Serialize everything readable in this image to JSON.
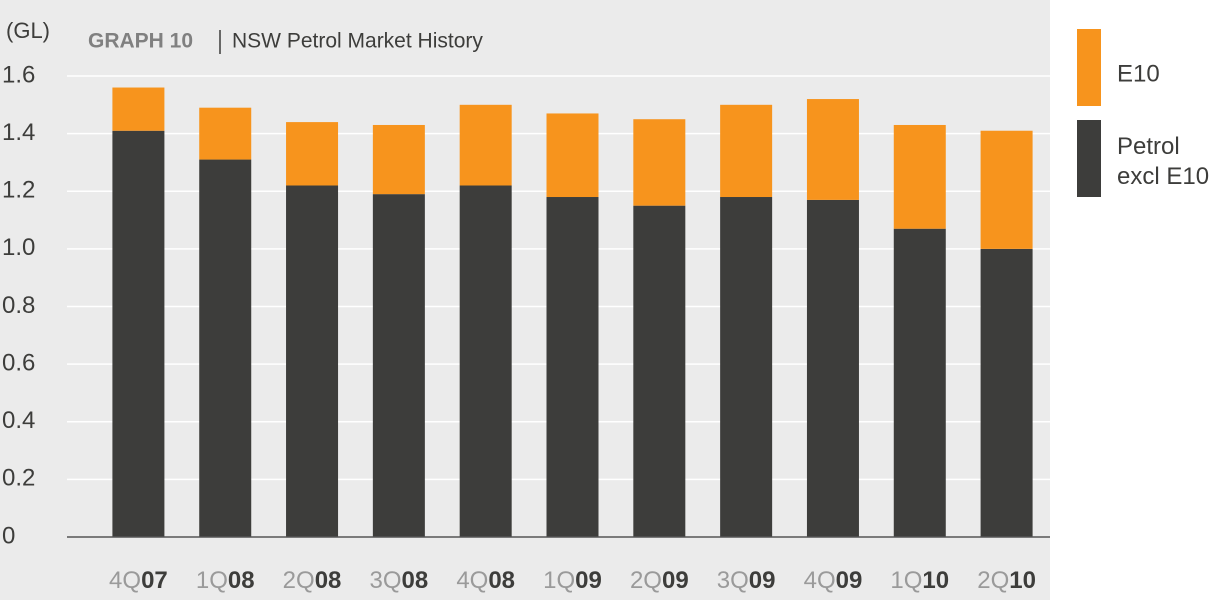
{
  "chart_data": {
    "type": "stacked_bar",
    "title_label": "GRAPH 10",
    "title": "NSW Petrol Market History",
    "y_label": "(GL)",
    "categories": [
      "4Q07",
      "1Q08",
      "2Q08",
      "3Q08",
      "4Q08",
      "1Q09",
      "2Q09",
      "3Q09",
      "4Q09",
      "1Q10",
      "2Q10"
    ],
    "series": [
      {
        "name": "Petrol excl E10",
        "color": "#3d3d3b",
        "values": [
          1.41,
          1.31,
          1.22,
          1.19,
          1.22,
          1.18,
          1.15,
          1.18,
          1.17,
          1.07,
          1.0
        ]
      },
      {
        "name": "E10",
        "color": "#f7941d",
        "values": [
          0.15,
          0.18,
          0.22,
          0.24,
          0.28,
          0.29,
          0.3,
          0.32,
          0.35,
          0.36,
          0.41
        ]
      }
    ],
    "ylim": [
      0,
      1.6
    ],
    "yticks": [
      0,
      0.2,
      0.4,
      0.6,
      0.8,
      {
        "value": 1,
        "label": "1.0"
      },
      1.2,
      1.4,
      1.6
    ],
    "grid": true,
    "legend": "right"
  }
}
